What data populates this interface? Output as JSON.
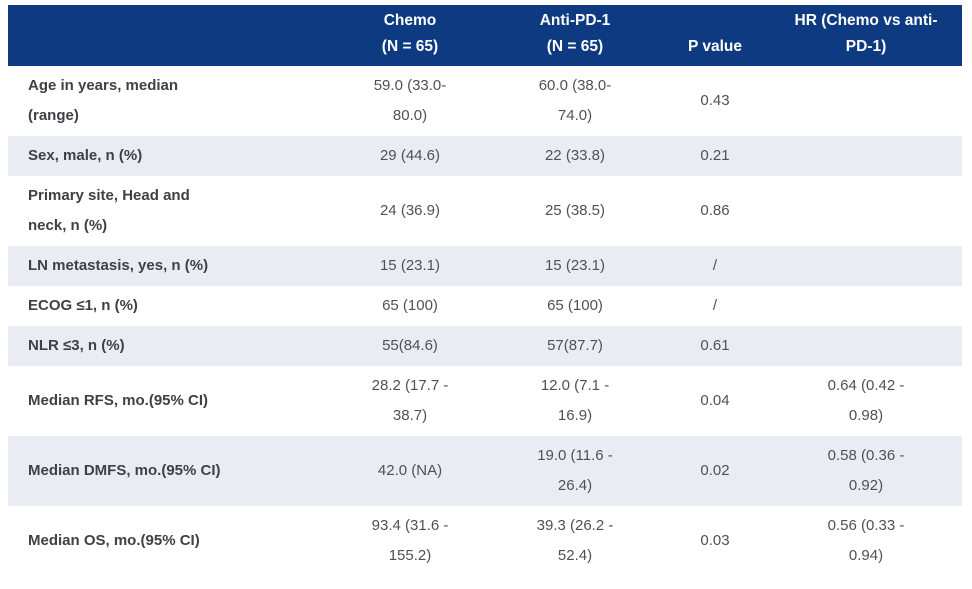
{
  "colors": {
    "header_bg": "#0d3a80",
    "header_text": "#ffffff",
    "row_alt_bg": "#e9edf3",
    "label_text": "#3e4145",
    "value_text": "#4e5256"
  },
  "table": {
    "header": {
      "blank": "",
      "chemo": "Chemo\n(N = 65)",
      "anti_pd1": "Anti-PD-1\n(N = 65)",
      "p_value": "P value",
      "hr": "HR (Chemo vs anti-\nPD-1)"
    },
    "rows": [
      {
        "label": "Age in years, median\n(range)",
        "chemo": "59.0  (33.0-\n80.0)",
        "anti": "60.0  (38.0-\n74.0)",
        "p": "0.43",
        "hr": ""
      },
      {
        "label": "Sex, male, n (%)",
        "chemo": "29  (44.6)",
        "anti": "22  (33.8)",
        "p": "0.21",
        "hr": ""
      },
      {
        "label": "Primary site, Head and\nneck, n (%)",
        "chemo": "24  (36.9)",
        "anti": "25  (38.5)",
        "p": "0.86",
        "hr": ""
      },
      {
        "label": "LN metastasis, yes, n (%)",
        "chemo": "15  (23.1)",
        "anti": "15  (23.1)",
        "p": "/",
        "hr": ""
      },
      {
        "label": "ECOG ≤1, n (%)",
        "chemo": "65  (100)",
        "anti": "65  (100)",
        "p": "/",
        "hr": ""
      },
      {
        "label": "NLR ≤3, n (%)",
        "chemo": "55(84.6)",
        "anti": "57(87.7)",
        "p": "0.61",
        "hr": ""
      },
      {
        "label": "Median RFS, mo.(95% CI)",
        "chemo": "28.2 (17.7 -\n38.7)",
        "anti": "12.0 (7.1 -\n16.9)",
        "p": "0.04",
        "hr": "0.64 (0.42 -\n0.98)"
      },
      {
        "label": "Median DMFS, mo.(95% CI)",
        "chemo": "42.0 (NA)",
        "anti": "19.0 (11.6 -\n26.4)",
        "p": "0.02",
        "hr": "0.58 (0.36 -\n0.92)"
      },
      {
        "label": "Median OS, mo.(95% CI)",
        "chemo": "93.4 (31.6 -\n155.2)",
        "anti": "39.3 (26.2 -\n52.4)",
        "p": "0.03",
        "hr": "0.56 (0.33 -\n0.94)"
      }
    ]
  }
}
